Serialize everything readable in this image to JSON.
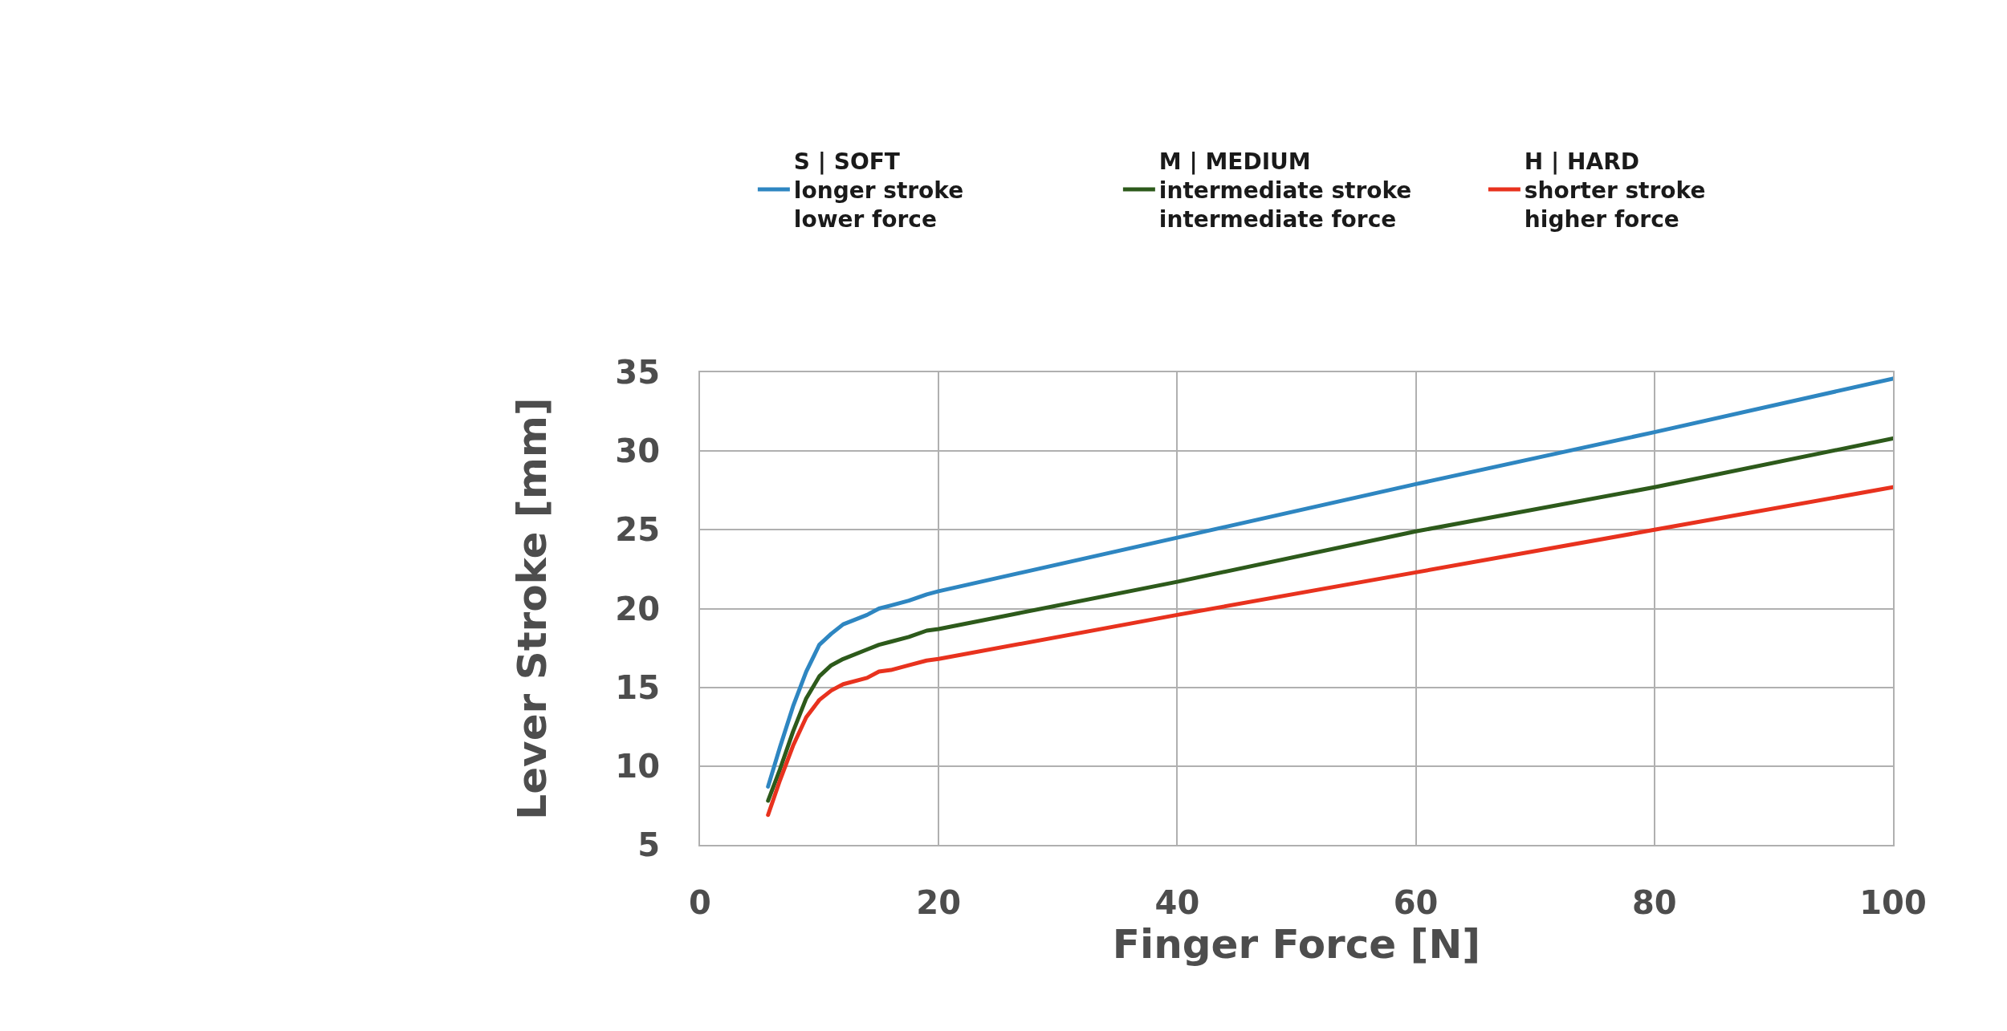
{
  "chart_data": {
    "type": "line",
    "xlabel": "Finger Force [N]",
    "ylabel": "Lever Stroke [mm]",
    "x": [
      5.7,
      6.7,
      7.8,
      8.9,
      10,
      11,
      12,
      14,
      15,
      16,
      17.5,
      19,
      20,
      40,
      60,
      80,
      100
    ],
    "series": [
      {
        "name": "S | SOFT\nlonger stroke\nlower force",
        "color": "#2e86c1",
        "values": [
          8.7,
          11.2,
          13.8,
          16.0,
          17.7,
          18.4,
          19.0,
          19.6,
          20.0,
          20.2,
          20.5,
          20.9,
          21.1,
          24.5,
          27.9,
          31.2,
          34.6
        ]
      },
      {
        "name": "M | MEDIUM\nintermediate stroke\nintermediate force",
        "color": "#2d5a1b",
        "values": [
          7.8,
          9.8,
          12.2,
          14.3,
          15.7,
          16.4,
          16.8,
          17.4,
          17.7,
          17.9,
          18.2,
          18.6,
          18.7,
          21.7,
          24.9,
          27.7,
          30.8
        ]
      },
      {
        "name": "H | HARD\nshorter stroke\nhigher force",
        "color": "#e8321e",
        "values": [
          6.9,
          9.1,
          11.3,
          13.1,
          14.2,
          14.8,
          15.2,
          15.6,
          16.0,
          16.1,
          16.4,
          16.7,
          16.8,
          19.6,
          22.3,
          25.0,
          27.7
        ]
      }
    ],
    "xlim": [
      0,
      100
    ],
    "xticks": [
      0,
      20,
      40,
      60,
      80,
      100
    ],
    "ylim": [
      5,
      35
    ],
    "yticks": [
      5,
      10,
      15,
      20,
      25,
      30,
      35
    ],
    "grid": true,
    "legend": "top"
  }
}
